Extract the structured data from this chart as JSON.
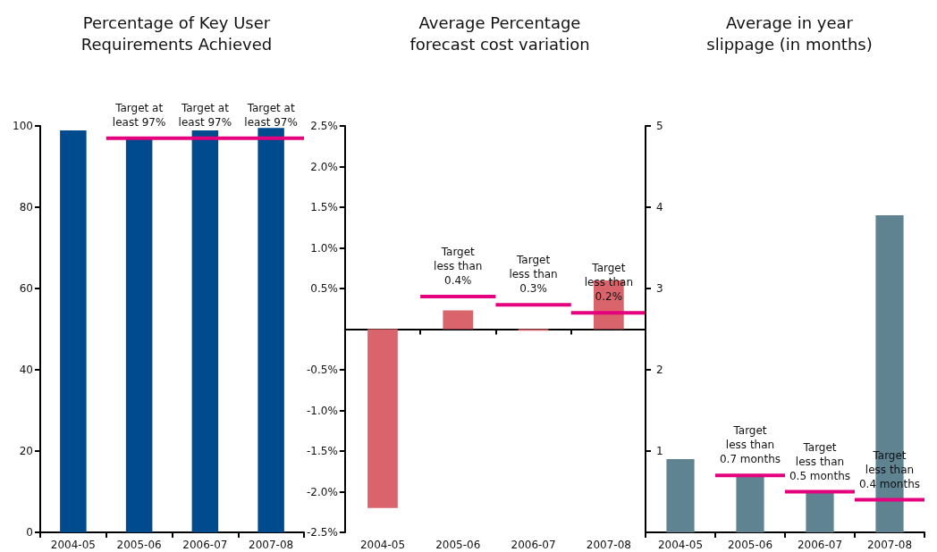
{
  "chart_data": [
    {
      "type": "bar",
      "title": "Percentage of Key User\nRequirements Achieved",
      "categories": [
        "2004-05",
        "2005-06",
        "2006-07",
        "2007-08"
      ],
      "color": "#004b8d",
      "values": [
        98.9,
        97,
        98.9,
        99.5
      ],
      "ylim": [
        0,
        100
      ],
      "yticks": [
        0,
        20,
        40,
        60,
        80,
        100
      ],
      "ref_lines": [
        {
          "axis": "y",
          "value": 97,
          "color": "#e5007e"
        }
      ],
      "annotations": [
        {
          "text": "Target at\nleast 97%",
          "x": "2005-06",
          "y": 97
        },
        {
          "text": "Target at\nleast 97%",
          "x": "2006-07",
          "y": 97
        },
        {
          "text": "Target at\nleast 97%",
          "x": "2007-08",
          "y": 97
        }
      ]
    },
    {
      "type": "bar",
      "title": "Average Percentage\nforecast cost variation",
      "categories": [
        "2004-05",
        "2005-06",
        "2006-07",
        "2007-08"
      ],
      "color": "#d9646b",
      "values": [
        -2.2,
        0.23,
        -0.02,
        0.6
      ],
      "ylim": [
        -2.5,
        2.5
      ],
      "yticks": [
        {
          "value": -2.5,
          "label": "-2.5%"
        },
        {
          "value": -2,
          "label": "-2.0%"
        },
        {
          "value": -1.5,
          "label": "-1.5%"
        },
        {
          "value": -1,
          "label": "-1.0%"
        },
        {
          "value": -0.5,
          "label": "-0.5%"
        },
        {
          "value": 0.5,
          "label": "0.5%"
        },
        {
          "value": 1,
          "label": "1.0%"
        },
        {
          "value": 1.5,
          "label": "1.5%"
        },
        {
          "value": 2,
          "label": "2.0%"
        },
        {
          "value": 2.5,
          "label": "2.5%"
        }
      ],
      "ref_lines": [
        {
          "axis": "y",
          "value": 0.4,
          "color": "#e5007e"
        },
        {
          "axis": "y",
          "value": 0.3,
          "color": "#e5007e"
        },
        {
          "axis": "y",
          "value": 0.2,
          "color": "#e5007e"
        }
      ],
      "annotations": [
        {
          "text": "Target\nless than\n0.4%",
          "x": "2005-06",
          "y": 0.4
        },
        {
          "text": "Target\nless than\n0.3%",
          "x": "2006-07",
          "y": 0.3
        },
        {
          "text": "Target\nless than\n0.2%",
          "x": "2007-08",
          "y": 0.2
        }
      ]
    },
    {
      "type": "bar",
      "title": "Average in year\nslippage (in months)",
      "categories": [
        "2004-05",
        "2005-06",
        "2006-07",
        "2007-08"
      ],
      "color": "#5f8390",
      "values": [
        0.9,
        0.7,
        0.5,
        3.9
      ],
      "ylim": [
        0,
        5
      ],
      "yticks": [
        {
          "value": 0,
          "label": null
        },
        1,
        2,
        3,
        4,
        5
      ],
      "ref_lines": [
        {
          "axis": "y",
          "value": 0.7,
          "color": "#e5007e"
        },
        {
          "axis": "y",
          "value": 0.5,
          "color": "#e5007e"
        },
        {
          "axis": "y",
          "value": 0.4,
          "color": "#e5007e"
        }
      ],
      "annotations": [
        {
          "text": "Target\nless than\n0.7 months",
          "x": "2005-06",
          "y": 0.7
        },
        {
          "text": "Target\nless than\n0.5 months",
          "x": "2006-07",
          "y": 0.5
        },
        {
          "text": "Target\nless than\n0.4 months",
          "x": "2007-08",
          "y": 0.4
        }
      ]
    }
  ]
}
